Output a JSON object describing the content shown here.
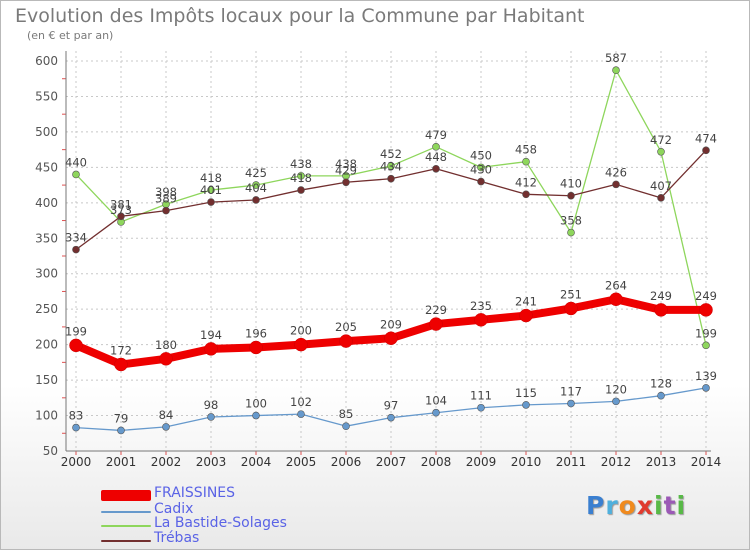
{
  "title": "Evolution des Impôts locaux pour la Commune par Habitant",
  "subtitle": "(en € et par an)",
  "logo": {
    "text": "Proxiti",
    "letter_colors": [
      "#3a7fd0",
      "#4fb0dd",
      "#f08a1e",
      "#e03a2e",
      "#58b947",
      "#9b59b6",
      "#58b947"
    ]
  },
  "chart_data": {
    "type": "line",
    "title": "Evolution des Impôts locaux pour la Commune par Habitant",
    "subtitle": "(en € et par an)",
    "x": [
      "2000",
      "2001",
      "2002",
      "2003",
      "2004",
      "2005",
      "2006",
      "2007",
      "2008",
      "2009",
      "2010",
      "2011",
      "2012",
      "2013",
      "2014"
    ],
    "ylim": [
      50,
      600
    ],
    "yticks": [
      50,
      100,
      150,
      200,
      250,
      300,
      350,
      400,
      450,
      500,
      550,
      600
    ],
    "grid": true,
    "legend_position": "bottom-left",
    "series": [
      {
        "name": "FRAISSINES",
        "color": "#ee0000",
        "emphasis": true,
        "values": [
          199,
          172,
          180,
          194,
          196,
          200,
          205,
          209,
          229,
          235,
          241,
          251,
          264,
          249,
          249
        ]
      },
      {
        "name": "Cadix",
        "color": "#6699cc",
        "emphasis": false,
        "values": [
          83,
          79,
          84,
          98,
          100,
          102,
          85,
          97,
          104,
          111,
          115,
          117,
          120,
          128,
          139
        ]
      },
      {
        "name": "La Bastide-Solages",
        "color": "#8ed65c",
        "emphasis": false,
        "values": [
          440,
          373,
          398,
          418,
          425,
          438,
          438,
          452,
          479,
          450,
          458,
          358,
          587,
          472,
          199
        ]
      },
      {
        "name": "Trébas",
        "color": "#722f2f",
        "emphasis": false,
        "values": [
          334,
          381,
          389,
          401,
          404,
          418,
          429,
          434,
          448,
          430,
          412,
          410,
          426,
          407,
          474
        ]
      }
    ]
  }
}
